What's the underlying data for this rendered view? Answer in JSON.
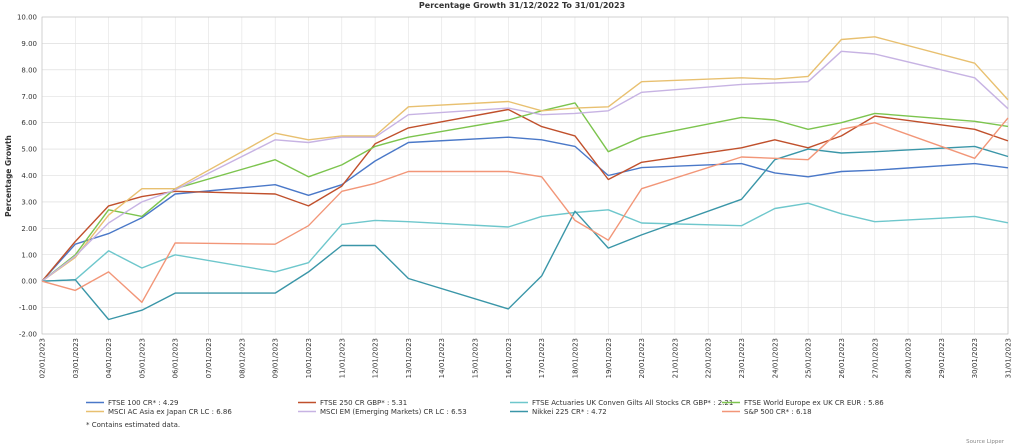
{
  "chart_data": {
    "type": "line",
    "title": "Percentage Growth 31/12/2022 To 31/01/2023",
    "ylabel": "Percentage Growth",
    "xlabel": "",
    "ylim": [
      -2.0,
      10.0
    ],
    "y_ticks": [
      "-2.00",
      "-1.00",
      "0.00",
      "1.00",
      "2.00",
      "3.00",
      "4.00",
      "5.00",
      "6.00",
      "7.00",
      "8.00",
      "9.00",
      "10.00"
    ],
    "grid": true,
    "x": [
      "02/01/2023",
      "03/01/2023",
      "04/01/2023",
      "05/01/2023",
      "06/01/2023",
      "07/01/2023",
      "08/01/2023",
      "09/01/2023",
      "10/01/2023",
      "11/01/2023",
      "12/01/2023",
      "13/01/2023",
      "14/01/2023",
      "15/01/2023",
      "16/01/2023",
      "17/01/2023",
      "18/01/2023",
      "19/01/2023",
      "20/01/2023",
      "21/01/2023",
      "22/01/2023",
      "23/01/2023",
      "24/01/2023",
      "25/01/2023",
      "26/01/2023",
      "27/01/2023",
      "28/01/2023",
      "29/01/2023",
      "30/01/2023",
      "31/01/2023"
    ],
    "series": [
      {
        "name": "FTSE 100 CR* : 4.29",
        "color": "#4a78c8",
        "points": [
          [
            0,
            0
          ],
          [
            1,
            1.4
          ],
          [
            2,
            1.8
          ],
          [
            3,
            2.4
          ],
          [
            4,
            3.3
          ],
          [
            7,
            3.65
          ],
          [
            8,
            3.25
          ],
          [
            9,
            3.65
          ],
          [
            10,
            4.55
          ],
          [
            11,
            5.25
          ],
          [
            14,
            5.45
          ],
          [
            15,
            5.35
          ],
          [
            16,
            5.1
          ],
          [
            17,
            4.0
          ],
          [
            18,
            4.3
          ],
          [
            21,
            4.45
          ],
          [
            22,
            4.1
          ],
          [
            23,
            3.95
          ],
          [
            24,
            4.15
          ],
          [
            25,
            4.2
          ],
          [
            28,
            4.45
          ],
          [
            29,
            4.29
          ]
        ]
      },
      {
        "name": "FTSE 250 CR GBP* : 5.31",
        "color": "#c0502c",
        "points": [
          [
            0,
            0
          ],
          [
            1,
            1.5
          ],
          [
            2,
            2.85
          ],
          [
            3,
            3.2
          ],
          [
            4,
            3.4
          ],
          [
            7,
            3.3
          ],
          [
            8,
            2.85
          ],
          [
            9,
            3.6
          ],
          [
            10,
            5.2
          ],
          [
            11,
            5.8
          ],
          [
            14,
            6.5
          ],
          [
            15,
            5.85
          ],
          [
            16,
            5.5
          ],
          [
            17,
            3.85
          ],
          [
            18,
            4.5
          ],
          [
            21,
            5.05
          ],
          [
            22,
            5.35
          ],
          [
            23,
            5.05
          ],
          [
            24,
            5.5
          ],
          [
            25,
            6.25
          ],
          [
            28,
            5.75
          ],
          [
            29,
            5.31
          ]
        ]
      },
      {
        "name": "FTSE Actuaries UK Conven Gilts All Stocks CR GBP* : 2.21",
        "color": "#6ec7cc",
        "points": [
          [
            0,
            0
          ],
          [
            1,
            0.05
          ],
          [
            2,
            1.15
          ],
          [
            3,
            0.5
          ],
          [
            4,
            1.0
          ],
          [
            7,
            0.35
          ],
          [
            8,
            0.7
          ],
          [
            9,
            2.15
          ],
          [
            10,
            2.3
          ],
          [
            11,
            2.25
          ],
          [
            14,
            2.05
          ],
          [
            15,
            2.45
          ],
          [
            16,
            2.6
          ],
          [
            17,
            2.7
          ],
          [
            18,
            2.2
          ],
          [
            21,
            2.1
          ],
          [
            22,
            2.75
          ],
          [
            23,
            2.95
          ],
          [
            24,
            2.55
          ],
          [
            25,
            2.25
          ],
          [
            28,
            2.45
          ],
          [
            29,
            2.21
          ]
        ]
      },
      {
        "name": "FTSE World Europe ex UK CR EUR : 5.86",
        "color": "#7cc44e",
        "points": [
          [
            0,
            0
          ],
          [
            1,
            1.0
          ],
          [
            2,
            2.7
          ],
          [
            3,
            2.45
          ],
          [
            4,
            3.5
          ],
          [
            7,
            4.6
          ],
          [
            8,
            3.95
          ],
          [
            9,
            4.4
          ],
          [
            10,
            5.1
          ],
          [
            11,
            5.45
          ],
          [
            14,
            6.1
          ],
          [
            15,
            6.45
          ],
          [
            16,
            6.75
          ],
          [
            17,
            4.9
          ],
          [
            18,
            5.45
          ],
          [
            21,
            6.2
          ],
          [
            22,
            6.1
          ],
          [
            23,
            5.75
          ],
          [
            24,
            6.0
          ],
          [
            25,
            6.35
          ],
          [
            28,
            6.05
          ],
          [
            29,
            5.86
          ]
        ]
      },
      {
        "name": "MSCI AC Asia ex Japan CR LC : 6.86",
        "color": "#e8c070",
        "points": [
          [
            0,
            0
          ],
          [
            1,
            0.9
          ],
          [
            2,
            2.5
          ],
          [
            3,
            3.5
          ],
          [
            4,
            3.5
          ],
          [
            7,
            5.6
          ],
          [
            8,
            5.35
          ],
          [
            9,
            5.5
          ],
          [
            10,
            5.5
          ],
          [
            11,
            6.6
          ],
          [
            14,
            6.8
          ],
          [
            15,
            6.45
          ],
          [
            16,
            6.55
          ],
          [
            17,
            6.6
          ],
          [
            18,
            7.55
          ],
          [
            21,
            7.7
          ],
          [
            22,
            7.65
          ],
          [
            23,
            7.75
          ],
          [
            24,
            9.15
          ],
          [
            25,
            9.25
          ],
          [
            28,
            8.25
          ],
          [
            29,
            6.86
          ]
        ]
      },
      {
        "name": "MSCI EM (Emerging Markets) CR LC : 6.53",
        "color": "#c7b3e3",
        "points": [
          [
            0,
            0
          ],
          [
            1,
            0.95
          ],
          [
            2,
            2.2
          ],
          [
            3,
            3.0
          ],
          [
            4,
            3.45
          ],
          [
            7,
            5.35
          ],
          [
            8,
            5.25
          ],
          [
            9,
            5.45
          ],
          [
            10,
            5.45
          ],
          [
            11,
            6.3
          ],
          [
            14,
            6.55
          ],
          [
            15,
            6.3
          ],
          [
            16,
            6.35
          ],
          [
            17,
            6.45
          ],
          [
            18,
            7.15
          ],
          [
            21,
            7.45
          ],
          [
            22,
            7.5
          ],
          [
            23,
            7.55
          ],
          [
            24,
            8.7
          ],
          [
            25,
            8.6
          ],
          [
            28,
            7.7
          ],
          [
            29,
            6.53
          ]
        ]
      },
      {
        "name": "Nikkei 225 CR* : 4.72",
        "color": "#3a96a8",
        "points": [
          [
            0,
            0
          ],
          [
            1,
            0.05
          ],
          [
            2,
            -1.45
          ],
          [
            3,
            -1.1
          ],
          [
            4,
            -0.45
          ],
          [
            7,
            -0.45
          ],
          [
            8,
            0.35
          ],
          [
            9,
            1.35
          ],
          [
            10,
            1.35
          ],
          [
            11,
            0.1
          ],
          [
            14,
            -1.05
          ],
          [
            15,
            0.2
          ],
          [
            16,
            2.65
          ],
          [
            17,
            1.25
          ],
          [
            18,
            1.75
          ],
          [
            21,
            3.1
          ],
          [
            22,
            4.6
          ],
          [
            23,
            5.0
          ],
          [
            24,
            4.85
          ],
          [
            25,
            4.9
          ],
          [
            28,
            5.1
          ],
          [
            29,
            4.72
          ]
        ]
      },
      {
        "name": "S&P 500 CR* : 6.18",
        "color": "#f29678",
        "points": [
          [
            0,
            0
          ],
          [
            1,
            -0.35
          ],
          [
            2,
            0.35
          ],
          [
            3,
            -0.8
          ],
          [
            4,
            1.45
          ],
          [
            7,
            1.4
          ],
          [
            8,
            2.1
          ],
          [
            9,
            3.4
          ],
          [
            10,
            3.7
          ],
          [
            11,
            4.15
          ],
          [
            14,
            4.15
          ],
          [
            15,
            3.95
          ],
          [
            16,
            2.3
          ],
          [
            17,
            1.55
          ],
          [
            18,
            3.5
          ],
          [
            21,
            4.7
          ],
          [
            22,
            4.65
          ],
          [
            23,
            4.6
          ],
          [
            24,
            5.75
          ],
          [
            25,
            6.0
          ],
          [
            28,
            4.65
          ],
          [
            29,
            6.18
          ]
        ]
      }
    ]
  },
  "footnote": "* Contains estimated data.",
  "source": "Source Lipper"
}
